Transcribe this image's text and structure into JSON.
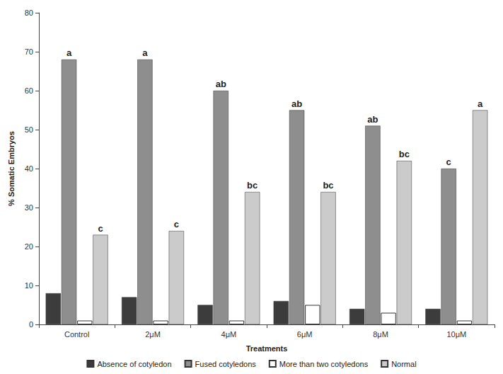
{
  "chart_data": {
    "type": "bar",
    "x_label": "Treatments",
    "y_label": "% Somatic Embryos",
    "categories": [
      "Control",
      "2μM",
      "4μM",
      "6μM",
      "8μM",
      "10μM"
    ],
    "series": [
      {
        "name": "Absence of cotyledon",
        "color": "#3c3c3c",
        "values": [
          8,
          7,
          5,
          6,
          4,
          4
        ]
      },
      {
        "name": "Fused cotyledons",
        "color": "#8e8e8e",
        "values": [
          68,
          68,
          60,
          55,
          51,
          40
        ],
        "annotations": [
          "a",
          "a",
          "ab",
          "ab",
          "ab",
          "c"
        ]
      },
      {
        "name": "More than two cotyledons",
        "color": "#ffffff",
        "values": [
          1,
          1,
          1,
          5,
          3,
          1
        ]
      },
      {
        "name": "Normal",
        "color": "#cbcbcb",
        "values": [
          23,
          24,
          34,
          34,
          42,
          55
        ],
        "annotations": [
          "c",
          "c",
          "bc",
          "bc",
          "bc",
          "a"
        ]
      }
    ],
    "ylim": [
      0,
      80
    ],
    "yticks": [
      0,
      10,
      20,
      30,
      40,
      50,
      60,
      70,
      80
    ],
    "grid": false,
    "legend": "bottom"
  }
}
